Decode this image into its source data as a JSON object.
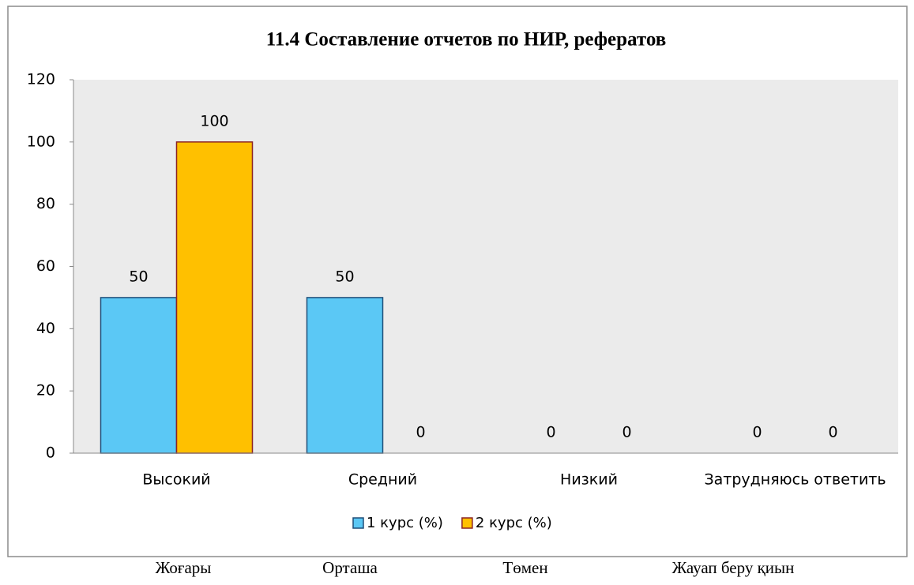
{
  "chart_data": {
    "type": "bar",
    "title": "11.4 Составление  отчетов  по НИР,  рефератов",
    "categories": [
      "Высокий",
      "Средний",
      "Низкий",
      "Затрудняюсь ответить"
    ],
    "series": [
      {
        "name": "1 курс (%)",
        "color": "#5bc8f5",
        "values": [
          50,
          50,
          0,
          0
        ]
      },
      {
        "name": "2 курс (%)",
        "color": "#ffc000",
        "values": [
          100,
          0,
          0,
          0
        ]
      }
    ],
    "ylim": [
      0,
      120
    ],
    "yticks": [
      0,
      20,
      40,
      60,
      80,
      100,
      120
    ],
    "grid": false,
    "legend": "bottom",
    "annotations": [
      "Жоғары",
      "Орташа",
      "Төмен",
      "Жауап беру қиын"
    ]
  }
}
